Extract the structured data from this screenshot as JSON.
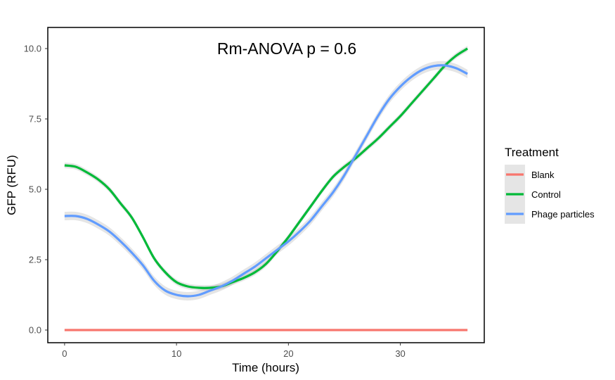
{
  "chart_data": {
    "type": "line",
    "annotation": "Rm-ANOVA p = 0.6",
    "xlabel": "Time (hours)",
    "ylabel": "GFP (RFU)",
    "xlim": [
      -1.5,
      37.5
    ],
    "ylim": [
      -0.45,
      10.75
    ],
    "x_ticks": [
      0,
      10,
      20,
      30
    ],
    "y_ticks": [
      0.0,
      2.5,
      5.0,
      7.5,
      10.0
    ],
    "y_tick_labels": [
      "0.0",
      "2.5",
      "5.0",
      "7.5",
      "10.0"
    ],
    "grid": false,
    "legend": {
      "title": "Treatment",
      "position": "right"
    },
    "series": [
      {
        "name": "Blank",
        "color": "#F8766D",
        "ci_halfwidth": 0.02,
        "x": [
          0,
          36
        ],
        "y": [
          0.0,
          0.0
        ]
      },
      {
        "name": "Control",
        "color": "#00BA38",
        "ci_halfwidth": 0.1,
        "x": [
          0,
          1,
          2,
          3,
          4,
          5,
          6,
          7,
          8,
          9,
          10,
          11,
          12,
          13,
          14,
          15,
          16,
          17,
          18,
          19,
          20,
          21,
          22,
          23,
          24,
          25,
          26,
          27,
          28,
          29,
          30,
          31,
          32,
          33,
          34,
          35,
          36
        ],
        "y": [
          5.85,
          5.8,
          5.6,
          5.35,
          5.0,
          4.5,
          4.0,
          3.3,
          2.55,
          2.05,
          1.7,
          1.55,
          1.5,
          1.5,
          1.55,
          1.7,
          1.85,
          2.05,
          2.35,
          2.8,
          3.3,
          3.85,
          4.4,
          4.95,
          5.45,
          5.8,
          6.1,
          6.45,
          6.8,
          7.2,
          7.6,
          8.05,
          8.5,
          8.95,
          9.4,
          9.75,
          10.0
        ]
      },
      {
        "name": "Phage particles",
        "color": "#619CFF",
        "ci_halfwidth": 0.15,
        "x": [
          0,
          1,
          2,
          3,
          4,
          5,
          6,
          7,
          8,
          9,
          10,
          11,
          12,
          13,
          14,
          15,
          16,
          17,
          18,
          19,
          20,
          21,
          22,
          23,
          24,
          25,
          26,
          27,
          28,
          29,
          30,
          31,
          32,
          33,
          34,
          35,
          36
        ],
        "y": [
          4.05,
          4.05,
          3.95,
          3.75,
          3.5,
          3.15,
          2.75,
          2.3,
          1.75,
          1.4,
          1.25,
          1.2,
          1.25,
          1.4,
          1.55,
          1.75,
          2.0,
          2.25,
          2.55,
          2.85,
          3.15,
          3.5,
          3.9,
          4.4,
          4.9,
          5.5,
          6.2,
          6.9,
          7.6,
          8.2,
          8.65,
          9.0,
          9.25,
          9.38,
          9.4,
          9.3,
          9.1
        ]
      }
    ]
  }
}
